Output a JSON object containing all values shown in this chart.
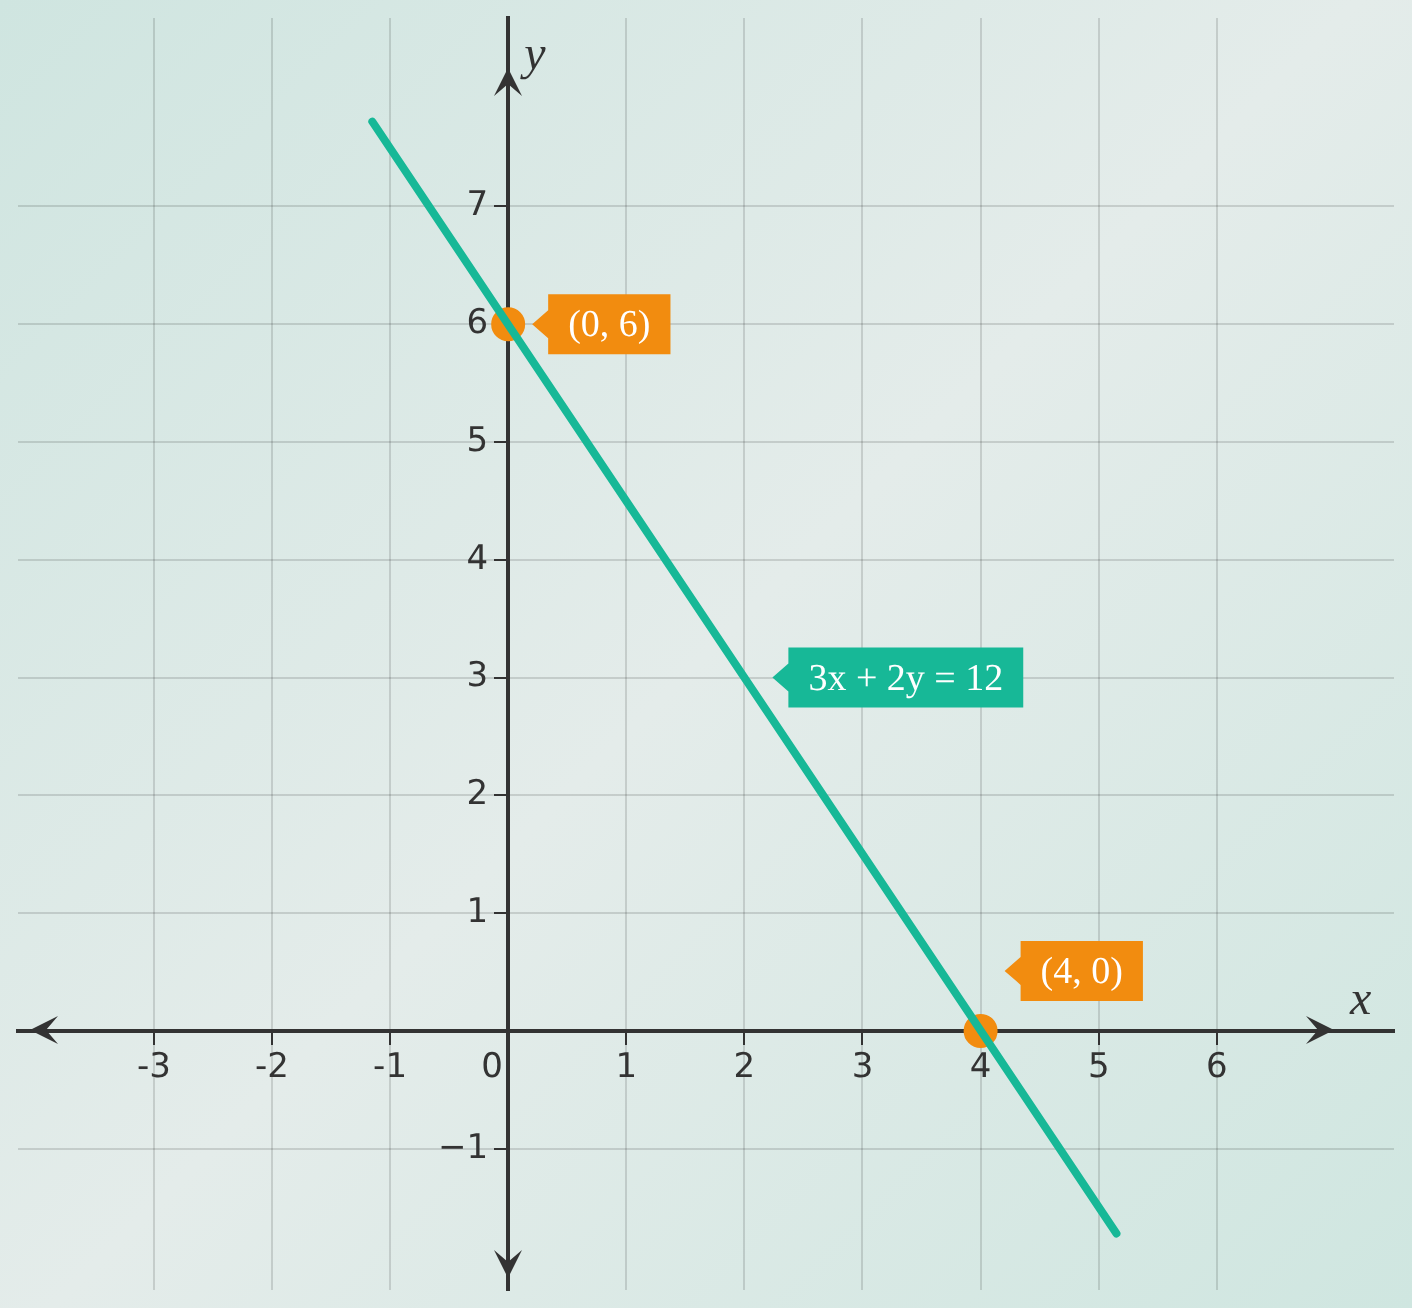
{
  "chart_data": {
    "type": "line",
    "xlabel": "x",
    "ylabel": "y",
    "series": [
      {
        "color": "#17b897",
        "x": [
          -1.15,
          5.15
        ],
        "values": [
          7.72,
          -1.72
        ]
      },
      {
        "type": "scatter",
        "color": "#f28c0f",
        "marker": "circle",
        "x": [
          0,
          4
        ],
        "values": [
          6,
          0
        ]
      }
    ],
    "xlim": [
      -4.15,
      7.5
    ],
    "ylim": [
      -2.2,
      8.6
    ],
    "xticks": [
      -3,
      -2,
      -1,
      0,
      1,
      2,
      3,
      4,
      5,
      6
    ],
    "yticks": [
      {
        "value": -1,
        "label": "−1"
      },
      1,
      2,
      3,
      4,
      5,
      6,
      7
    ],
    "grid": true,
    "line_style": "solid",
    "legend": false,
    "annotations": [
      {
        "text": "(0, 6)",
        "x": 0,
        "y": 6
      },
      {
        "text": "(4, 0)",
        "x": 4,
        "y": 0
      },
      "3x + 2y = 12"
    ]
  }
}
